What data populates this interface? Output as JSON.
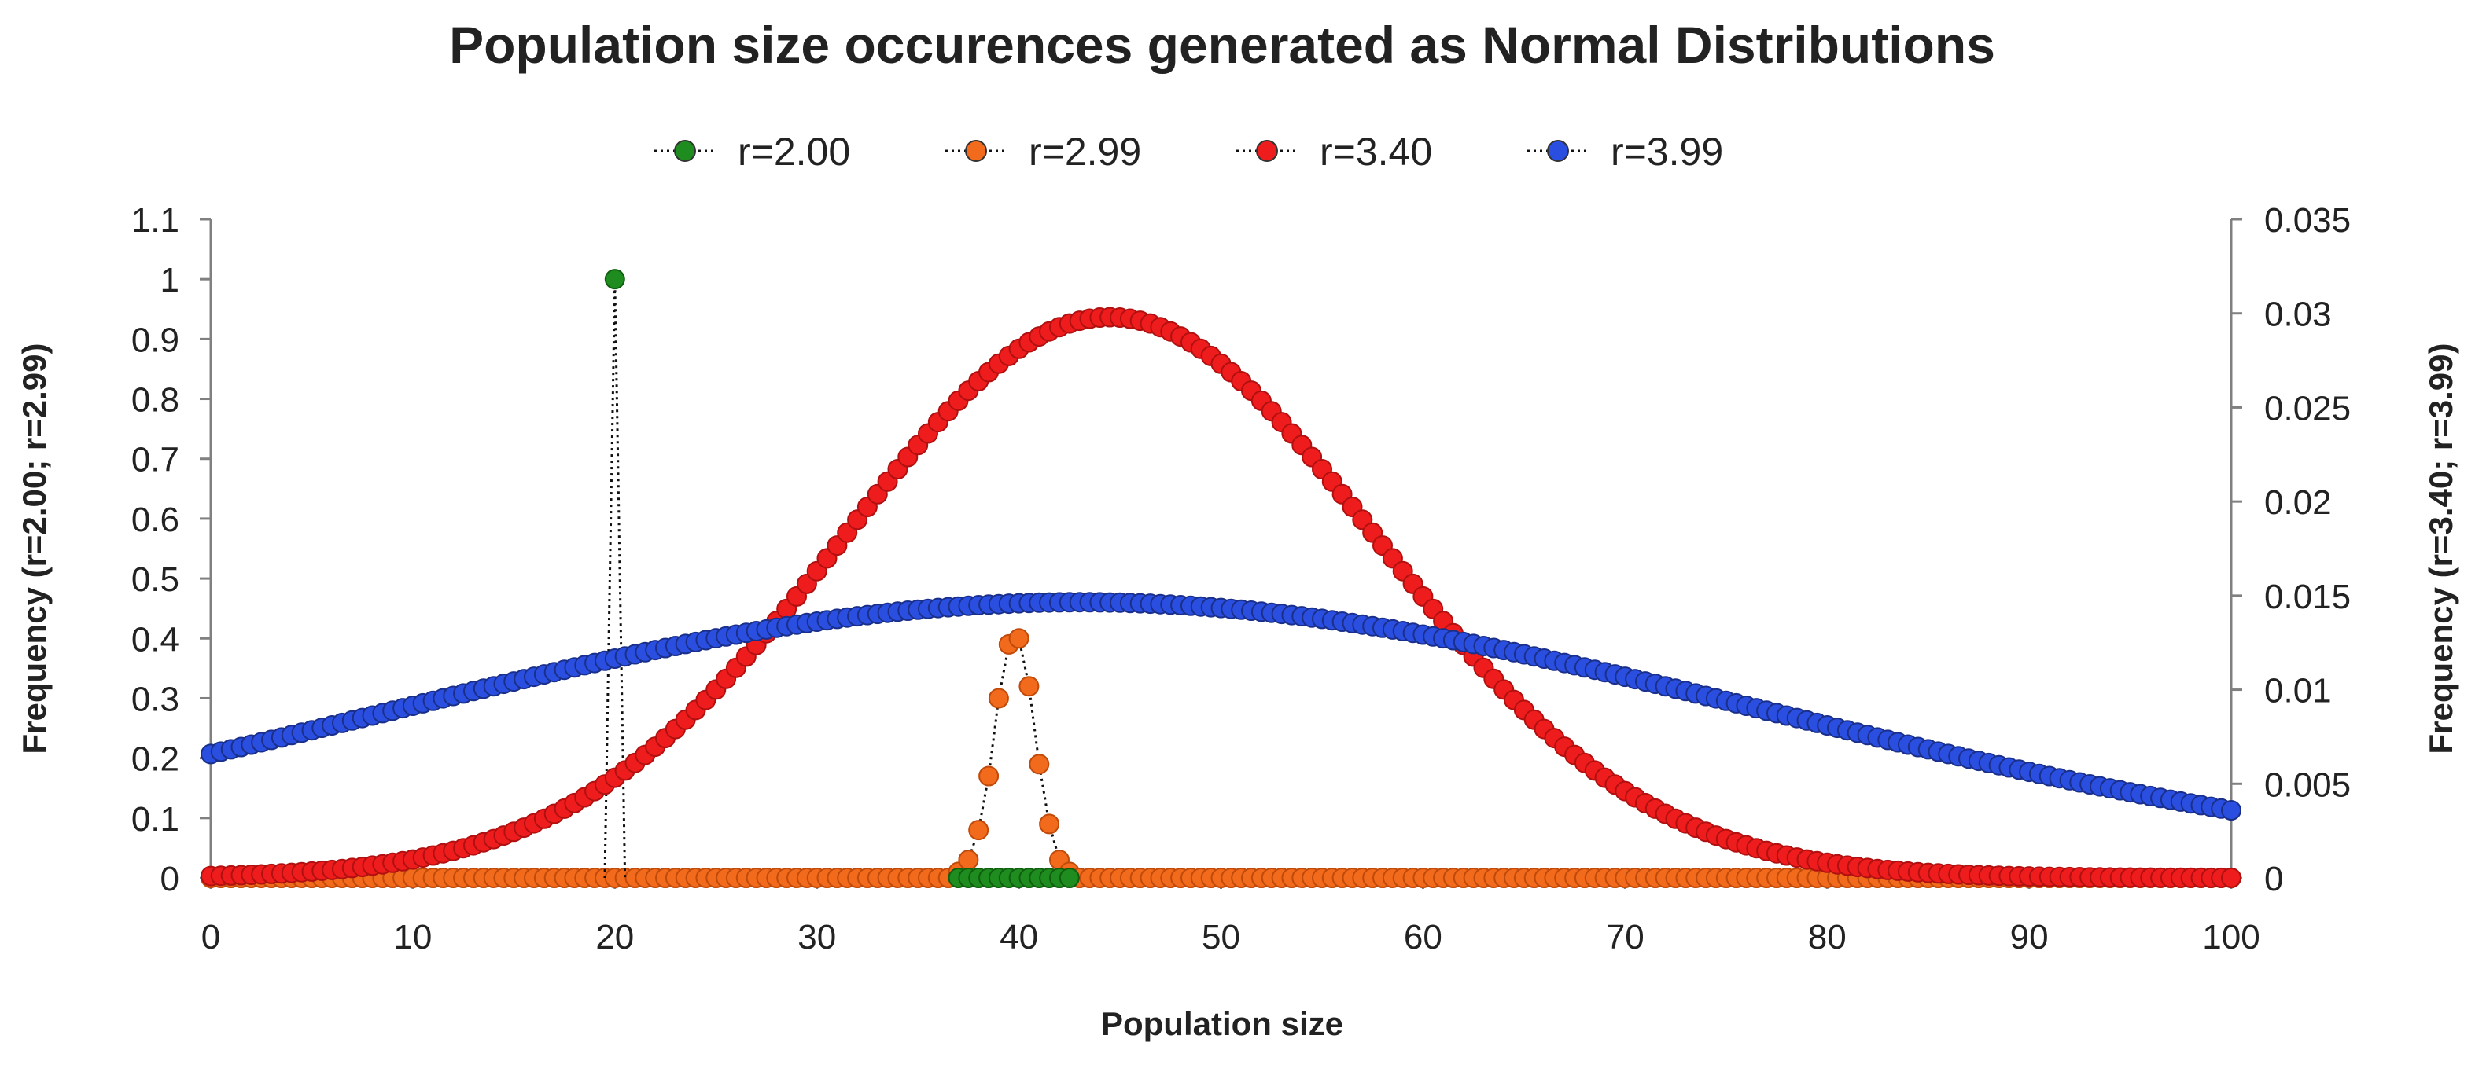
{
  "chart_data": {
    "type": "scatter",
    "title": "Population size occurences generated as Normal Distributions",
    "xlabel": "Population size",
    "ylabel_left": "Frequency (r=2.00; r=2.99)",
    "ylabel_right": "Frequency (r=3.40; r=3.99)",
    "xlim": [
      0,
      100
    ],
    "ylim_left": [
      0,
      1.1
    ],
    "ylim_right": [
      0,
      0.035
    ],
    "x_ticks": [
      "0",
      "10",
      "20",
      "30",
      "40",
      "50",
      "60",
      "70",
      "80",
      "90",
      "100"
    ],
    "y_left_ticks": [
      "0",
      "0.1",
      "0.2",
      "0.3",
      "0.4",
      "0.5",
      "0.6",
      "0.7",
      "0.8",
      "0.9",
      "1",
      "1.1"
    ],
    "y_right_ticks": [
      "0",
      "0.005",
      "0.01",
      "0.015",
      "0.02",
      "0.025",
      "0.03",
      "0.035"
    ],
    "legend_position": "top-center",
    "grid": false,
    "series": [
      {
        "name": "r=2.00",
        "axis": "left",
        "color": "#1e8c1e",
        "line_style": "dotted",
        "x": [
          20,
          37,
          37.5,
          38,
          38.5,
          39,
          39.5,
          40,
          40.5,
          41,
          41.5,
          42,
          42.5
        ],
        "y": [
          1.0,
          0,
          0,
          0,
          0,
          0,
          0,
          0,
          0,
          0,
          0,
          0,
          0
        ]
      },
      {
        "name": "r=2.99",
        "axis": "left",
        "color": "#f26a1b",
        "line_style": "dotted",
        "sampling": "0 to 100 step 0.5",
        "peak_points": {
          "x": [
            37,
            37.5,
            38,
            38.5,
            39,
            39.5,
            40,
            40.5,
            41,
            41.5,
            42,
            42.5
          ],
          "y": [
            0.01,
            0.03,
            0.08,
            0.17,
            0.3,
            0.39,
            0.4,
            0.32,
            0.19,
            0.09,
            0.03,
            0.01
          ]
        },
        "baseline_y": 0
      },
      {
        "name": "r=3.40",
        "axis": "right",
        "color": "#ee1c1c",
        "line_style": "dotted",
        "distribution": "normal",
        "mean": 44.5,
        "std": 13.2,
        "peak": 0.0298,
        "sampling": "0 to 100 step 0.5"
      },
      {
        "name": "r=3.99",
        "axis": "right",
        "color": "#2a4fe0",
        "line_style": "dotted",
        "distribution": "normal",
        "mean": 43,
        "std": 34,
        "peak": 0.01465,
        "sampling": "0 to 100 step 0.5"
      }
    ]
  }
}
